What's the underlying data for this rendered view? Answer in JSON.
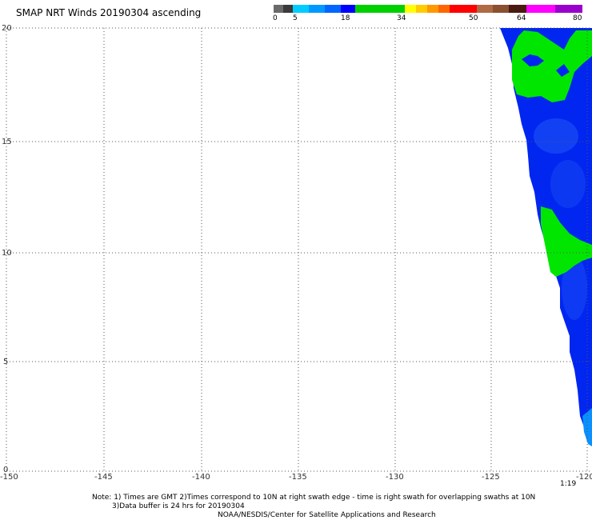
{
  "title": "SMAP NRT Winds 20190304 ascending",
  "legend": {
    "ticks": [
      "0",
      "5",
      "18",
      "34",
      "50",
      "64",
      "80"
    ],
    "colors": {
      "calm": "#555555",
      "light": "#00aaff",
      "moderate": "#0000ff",
      "strong": "#00c000",
      "gale": "#ffdd00",
      "storm": "#ff2222",
      "hurricane": "#885533",
      "extreme": "#cc00cc"
    }
  },
  "chart_data": {
    "type": "heatmap",
    "title": "SMAP NRT Winds 20190304 ascending",
    "x_ticks": [
      "-150",
      "-145",
      "-140",
      "-135",
      "-130",
      "-125",
      "-120"
    ],
    "y_ticks": [
      "0",
      "5",
      "10",
      "15",
      "20"
    ],
    "xlim": [
      -150,
      -120
    ],
    "ylim": [
      0,
      20
    ],
    "grid": true,
    "swath_time": "1:19"
  },
  "notes": {
    "line1": "Note: 1) Times are GMT 2)Times correspond to 10N at right swath edge - time is right swath for overlapping swaths at 10N",
    "line2": "3)Data buffer is 24 hrs for 20190304",
    "line3": "NOAA/NESDIS/Center for Satellite Applications and Research"
  }
}
